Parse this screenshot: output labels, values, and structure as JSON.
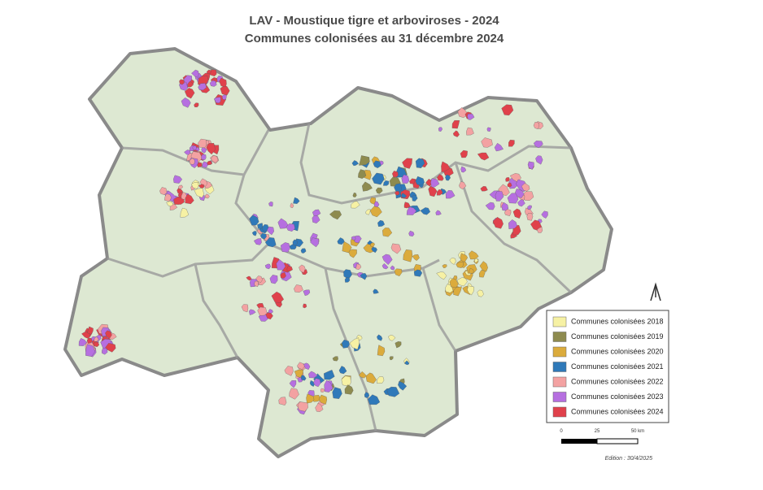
{
  "title": "LAV - Moustique tigre et arboviroses - 2024",
  "subtitle": "Communes colonisées au 31 décembre 2024",
  "legend": [
    {
      "label": "Communes colonisées 2018",
      "color": "#f6f1a4"
    },
    {
      "label": "Communes colonisées 2019",
      "color": "#8e8b4f"
    },
    {
      "label": "Communes colonisées 2020",
      "color": "#dbab3c"
    },
    {
      "label": "Communes colonisées 2021",
      "color": "#2f79b9"
    },
    {
      "label": "Communes colonisées 2022",
      "color": "#f3a2a2"
    },
    {
      "label": "Communes colonisées 2023",
      "color": "#b66fe0"
    },
    {
      "label": "Communes colonisées 2024",
      "color": "#e0414b"
    }
  ],
  "scale_bar": {
    "labels": [
      "0",
      "25",
      "50 km"
    ]
  },
  "edition": "Edition : 30/4/2025"
}
